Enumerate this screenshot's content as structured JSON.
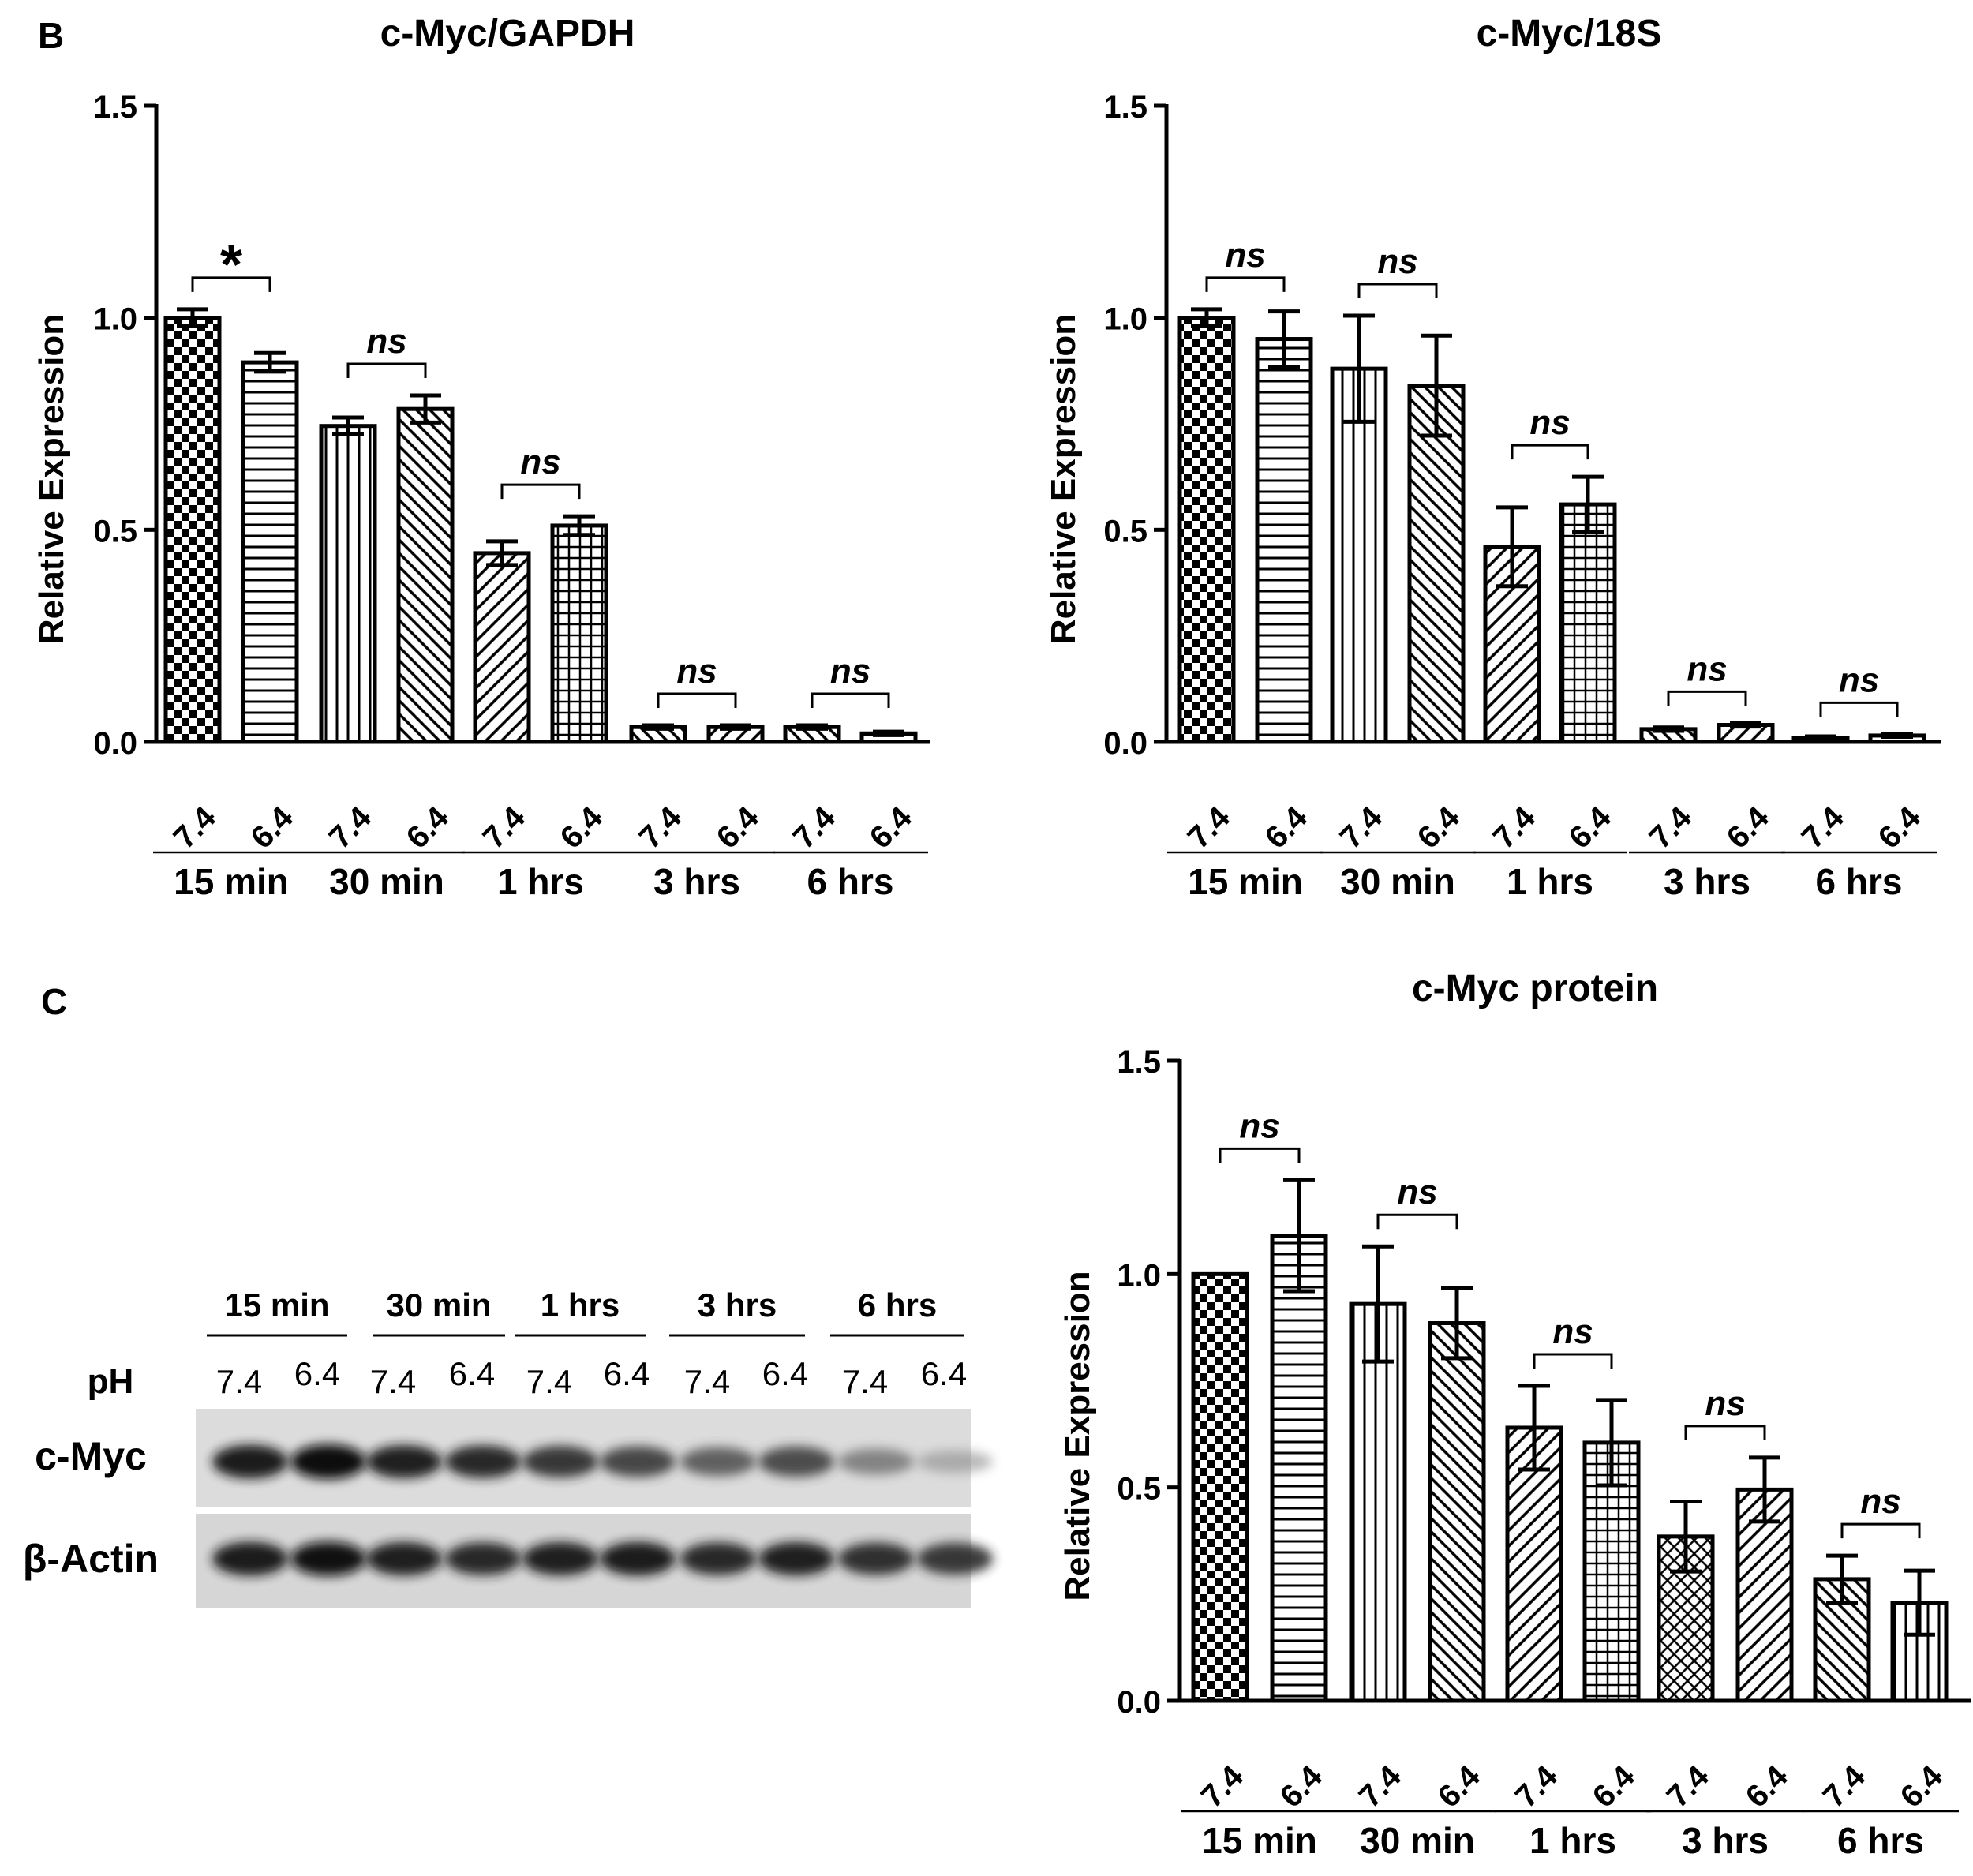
{
  "panels": {
    "b_label": "B",
    "c_label": "C"
  },
  "chart_data": [
    {
      "type": "bar",
      "title": "c-Myc/GAPDH",
      "ylabel": "Relative Expression",
      "xlabel": "",
      "ylim": [
        0,
        1.5
      ],
      "yticks": [
        "0.0",
        "0.5",
        "1.0",
        "1.5"
      ],
      "groups": [
        "15 min",
        "30 min",
        "1 hrs",
        "3 hrs",
        "6 hrs"
      ],
      "categories": [
        "7.4",
        "6.4",
        "7.4",
        "6.4",
        "7.4",
        "6.4",
        "7.4",
        "6.4",
        "7.4",
        "6.4"
      ],
      "values": [
        1.0,
        0.895,
        0.745,
        0.785,
        0.445,
        0.51,
        0.035,
        0.035,
        0.035,
        0.02
      ],
      "errors": [
        0.02,
        0.022,
        0.02,
        0.032,
        0.028,
        0.022,
        0.004,
        0.004,
        0.004,
        0.004
      ],
      "patterns": [
        "checker",
        "hlines",
        "vlines",
        "diag",
        "diag-back",
        "grid",
        "diag",
        "diag-back",
        "diag",
        "hlines"
      ],
      "significance": [
        "*",
        "ns",
        "ns",
        "ns",
        "ns"
      ]
    },
    {
      "type": "bar",
      "title": "c-Myc/18S",
      "ylabel": "Relative Expression",
      "xlabel": "",
      "ylim": [
        0,
        1.5
      ],
      "yticks": [
        "0.0",
        "0.5",
        "1.0",
        "1.5"
      ],
      "groups": [
        "15 min",
        "30 min",
        "1 hrs",
        "3 hrs",
        "6 hrs"
      ],
      "categories": [
        "7.4",
        "6.4",
        "7.4",
        "6.4",
        "7.4",
        "6.4",
        "7.4",
        "6.4",
        "7.4",
        "6.4"
      ],
      "values": [
        1.0,
        0.95,
        0.88,
        0.84,
        0.46,
        0.56,
        0.03,
        0.04,
        0.01,
        0.015
      ],
      "errors": [
        0.02,
        0.065,
        0.125,
        0.118,
        0.093,
        0.065,
        0.004,
        0.004,
        0.003,
        0.003
      ],
      "patterns": [
        "checker",
        "hlines",
        "vlines",
        "diag",
        "diag-back",
        "grid",
        "diag",
        "diag-back",
        "diag",
        "hlines"
      ],
      "significance": [
        "ns",
        "ns",
        "ns",
        "ns",
        "ns"
      ]
    },
    {
      "type": "bar",
      "title": "c-Myc protein",
      "ylabel": "Relative Expression",
      "xlabel": "",
      "ylim": [
        0,
        1.5
      ],
      "yticks": [
        "0.0",
        "0.5",
        "1.0",
        "1.5"
      ],
      "groups": [
        "15 min",
        "30 min",
        "1 hrs",
        "3 hrs",
        "6 hrs"
      ],
      "categories": [
        "7.4",
        "6.4",
        "7.4",
        "6.4",
        "7.4",
        "6.4",
        "7.4",
        "6.4",
        "7.4",
        "6.4"
      ],
      "values": [
        1.0,
        1.09,
        0.93,
        0.885,
        0.64,
        0.605,
        0.385,
        0.495,
        0.285,
        0.23
      ],
      "errors": [
        0,
        0.13,
        0.135,
        0.082,
        0.098,
        0.1,
        0.082,
        0.075,
        0.055,
        0.075
      ],
      "patterns": [
        "checker",
        "hlines",
        "vlines",
        "diag",
        "diag-back",
        "grid",
        "crosshatch",
        "diag-back",
        "diag",
        "vlines"
      ],
      "significance": [
        "ns",
        "ns",
        "ns",
        "ns",
        "ns"
      ]
    }
  ],
  "western_blot": {
    "time_labels": [
      "15 min",
      "30 min",
      "1 hrs",
      "3 hrs",
      "6 hrs"
    ],
    "ph_label": "pH",
    "ph_values": [
      "7.4",
      "6.4",
      "7.4",
      "6.4",
      "7.4",
      "6.4",
      "7.4",
      "6.4",
      "7.4",
      "6.4"
    ],
    "row_labels": [
      "c-Myc",
      "β-Actin"
    ],
    "cmyc_intensity": [
      0.95,
      1.0,
      0.92,
      0.9,
      0.85,
      0.8,
      0.7,
      0.78,
      0.55,
      0.35
    ],
    "actin_intensity": [
      0.95,
      0.97,
      0.93,
      0.9,
      0.93,
      0.95,
      0.9,
      0.93,
      0.88,
      0.85
    ]
  }
}
